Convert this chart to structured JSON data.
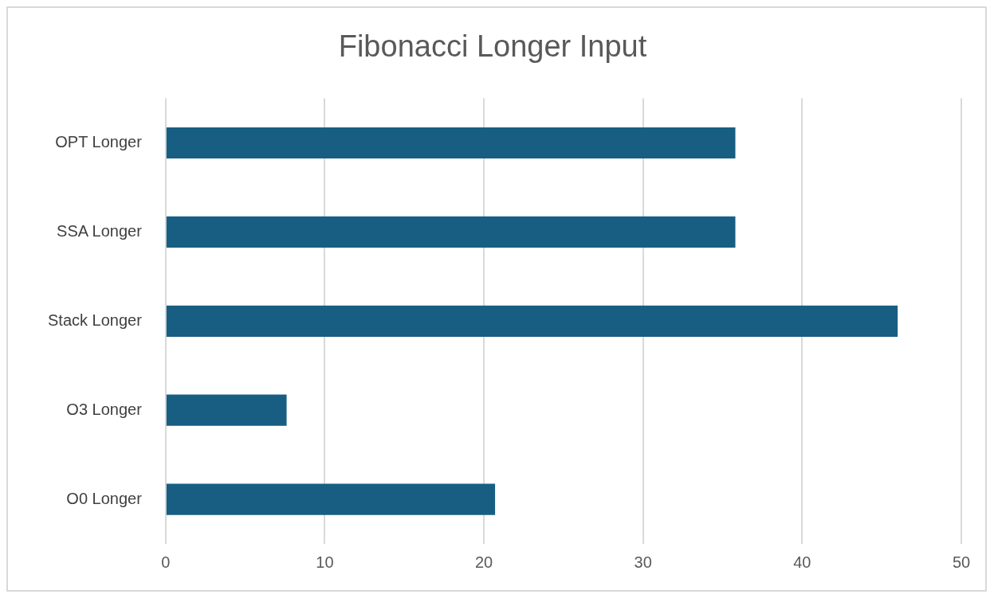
{
  "chart_data": {
    "type": "bar",
    "orientation": "horizontal",
    "title": "Fibonacci Longer Input",
    "categories": [
      "OPT Longer",
      "SSA Longer",
      "Stack Longer",
      "O3 Longer",
      "O0 Longer"
    ],
    "values": [
      35.8,
      35.8,
      46,
      7.6,
      20.7
    ],
    "color": "#175e82",
    "xlim": [
      0,
      50
    ],
    "xticks": [
      0,
      10,
      20,
      30,
      40,
      50
    ],
    "grid": "x"
  }
}
